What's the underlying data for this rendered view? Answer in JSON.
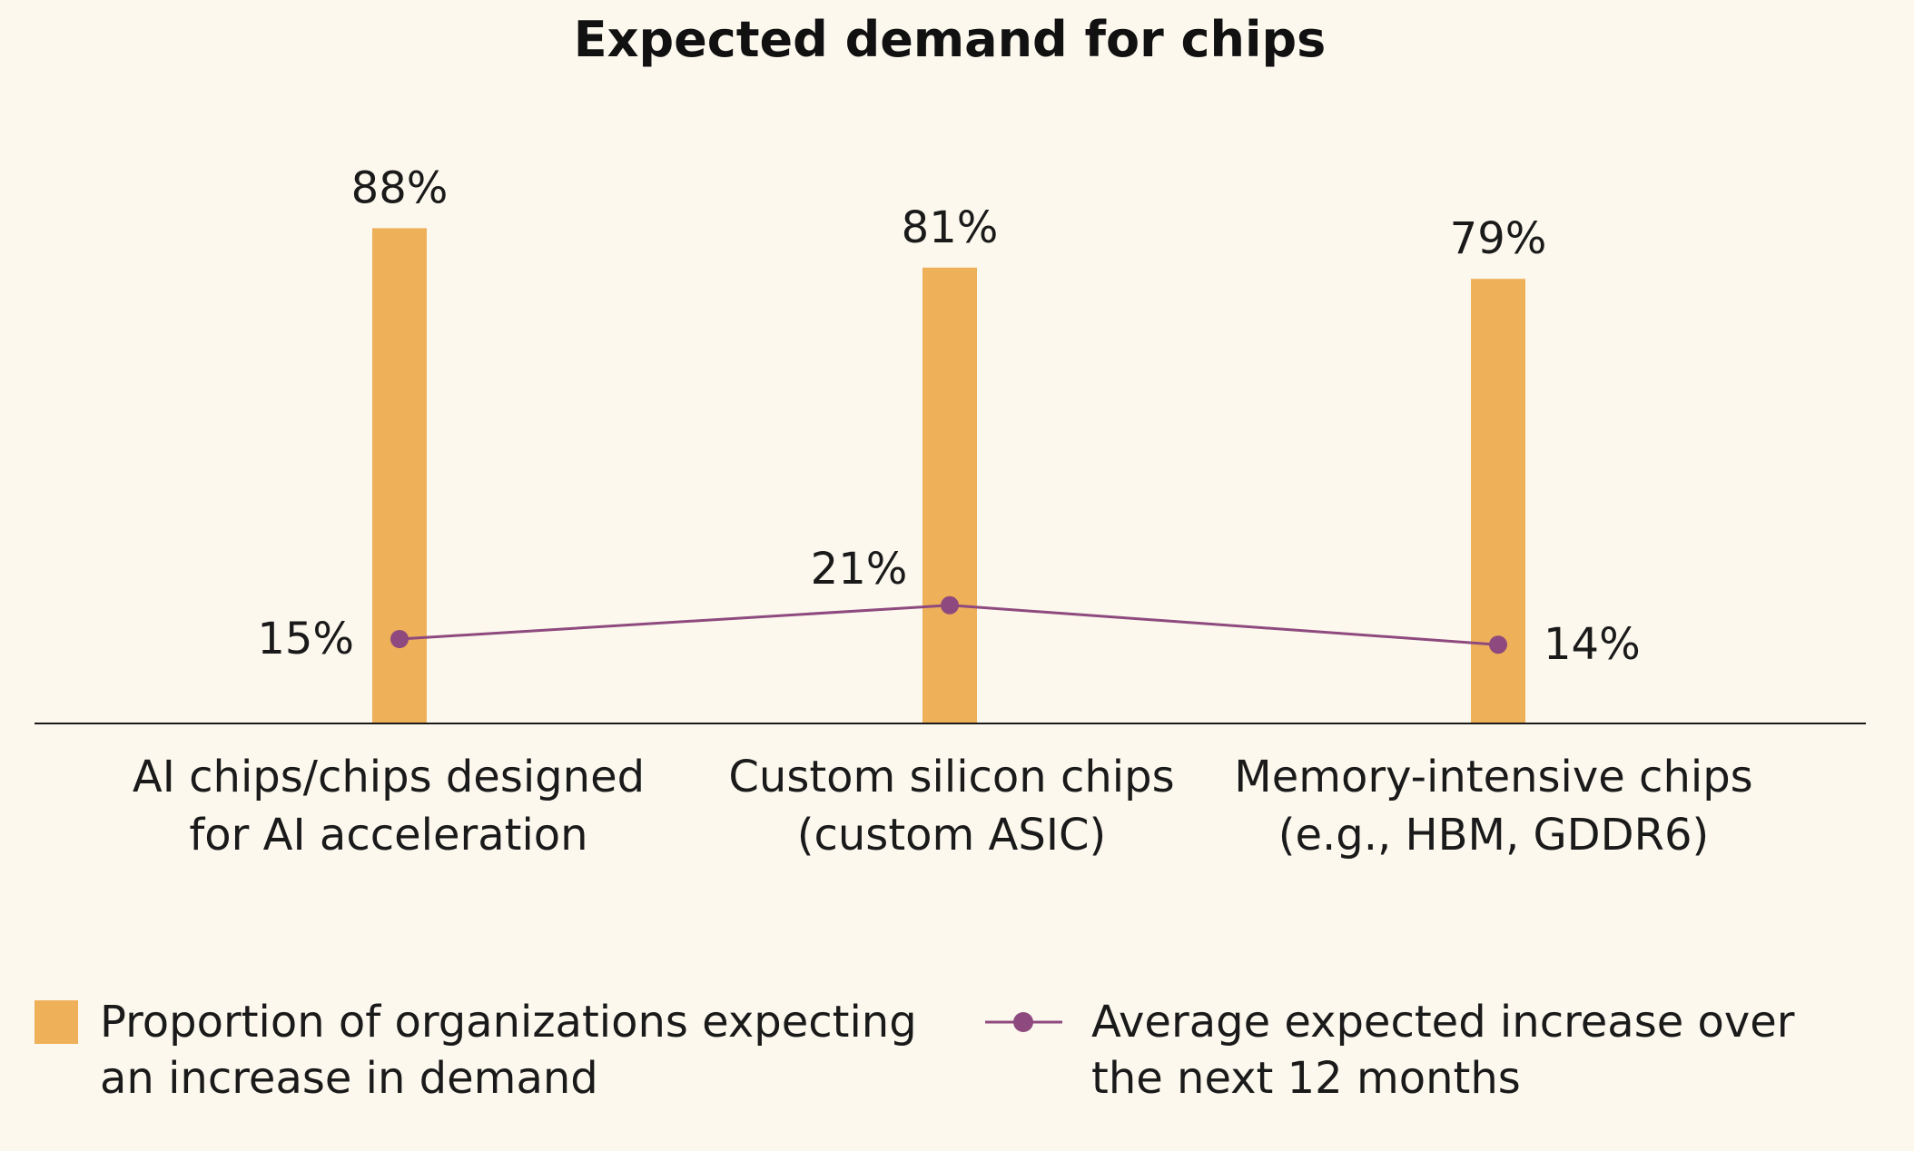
{
  "chart_data": {
    "type": "bar",
    "title": "Expected demand for chips",
    "categories": [
      [
        "AI chips/chips designed",
        "for AI acceleration"
      ],
      [
        "Custom silicon chips",
        "(custom ASIC)"
      ],
      [
        "Memory-intensive chips",
        "(e.g., HBM, GDDR6)"
      ]
    ],
    "series": [
      {
        "name": "Proportion of organizations expecting an increase in demand",
        "legend_lines": [
          "Proportion of organizations expecting",
          "an increase in demand"
        ],
        "type": "bar",
        "color": "#efb05a",
        "values": [
          88,
          81,
          79
        ],
        "labels": [
          "88%",
          "81%",
          "79%"
        ]
      },
      {
        "name": "Average expected increase over the next 12 months",
        "legend_lines": [
          "Average expected increase over",
          "the next 12 months"
        ],
        "type": "line",
        "color": "#8e4a7e",
        "values": [
          15,
          21,
          14
        ],
        "labels": [
          "15%",
          "21%",
          "14%"
        ]
      }
    ],
    "ylim": [
      0,
      100
    ],
    "grid": false,
    "legend_position": "bottom"
  }
}
